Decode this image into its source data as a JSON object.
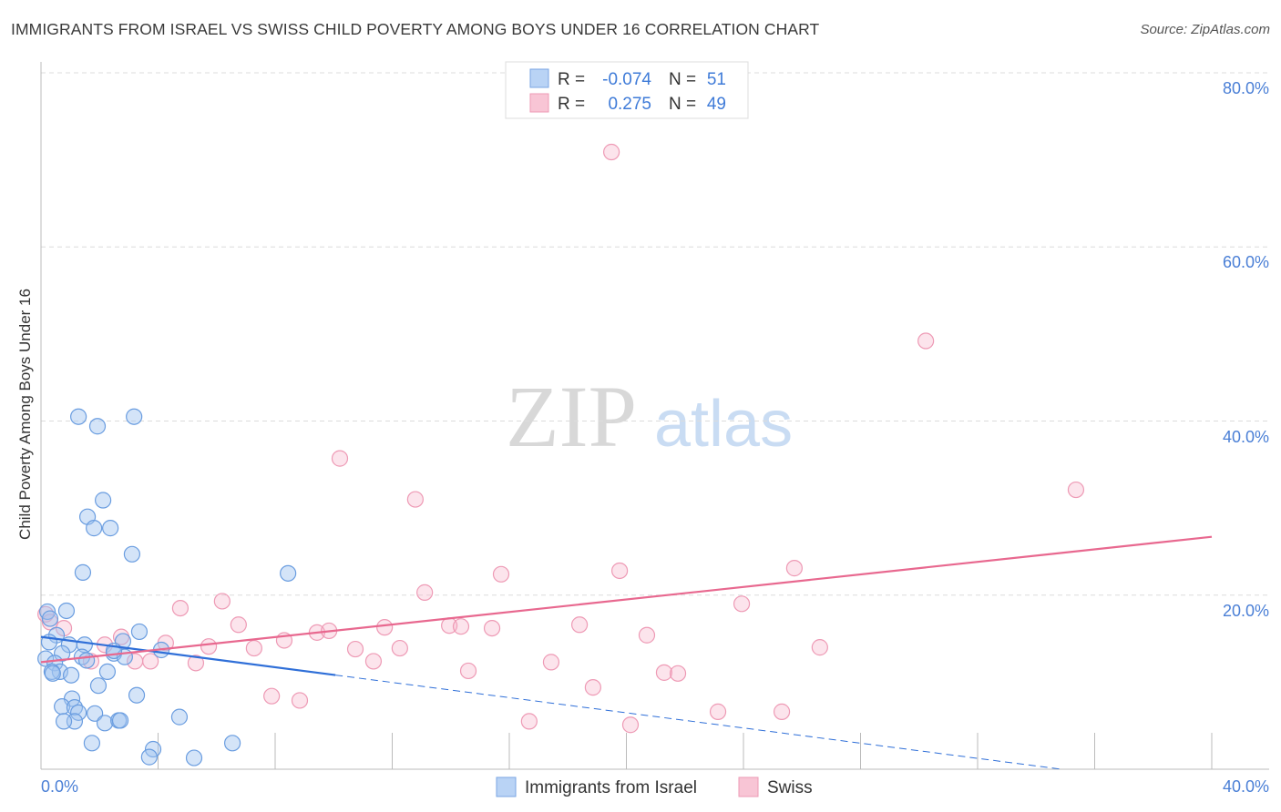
{
  "title": "IMMIGRANTS FROM ISRAEL VS SWISS CHILD POVERTY AMONG BOYS UNDER 16 CORRELATION CHART",
  "source": "Source: ZipAtlas.com",
  "watermark": {
    "zip": "ZIP",
    "atlas": "atlas"
  },
  "colors": {
    "blue": "#6a9de0",
    "blue_line": "#2f6fd8",
    "pink": "#ee9ab5",
    "pink_line": "#e8688f",
    "tick": "#4a7fd6"
  },
  "chart_data": {
    "type": "scatter",
    "title": "IMMIGRANTS FROM ISRAEL VS SWISS CHILD POVERTY AMONG BOYS UNDER 16 CORRELATION CHART",
    "xlabel": "",
    "ylabel": "Child Poverty Among Boys Under 16",
    "xlim": [
      0,
      40
    ],
    "ylim": [
      0,
      80
    ],
    "x_tick_labels": [
      "0.0%",
      "40.0%"
    ],
    "y_ticks": [
      20,
      40,
      60,
      80
    ],
    "y_tick_labels": [
      "20.0%",
      "40.0%",
      "60.0%",
      "80.0%"
    ],
    "grid": true,
    "stats_legend": [
      {
        "r_label": "R =",
        "r": "-0.074",
        "n_label": "N =",
        "n": "51"
      },
      {
        "r_label": "R =",
        "r": "0.275",
        "n_label": "N =",
        "n": "49"
      }
    ],
    "legend": [
      "Immigrants from Israel",
      "Swiss"
    ],
    "series": [
      {
        "name": "Immigrants from Israel",
        "trend": {
          "x0": 0,
          "y0": 15.2,
          "x_solid_end": 10.06,
          "slope": -0.436
        },
        "points": [
          [
            1.28,
            40.5
          ],
          [
            1.93,
            39.4
          ],
          [
            3.18,
            40.5
          ],
          [
            2.12,
            30.9
          ],
          [
            1.59,
            29.0
          ],
          [
            1.81,
            27.7
          ],
          [
            2.37,
            27.7
          ],
          [
            3.11,
            24.7
          ],
          [
            1.43,
            22.6
          ],
          [
            8.44,
            22.5
          ],
          [
            0.22,
            18.1
          ],
          [
            0.87,
            18.2
          ],
          [
            0.31,
            17.3
          ],
          [
            0.53,
            15.4
          ],
          [
            0.28,
            14.6
          ],
          [
            0.96,
            14.3
          ],
          [
            1.49,
            14.3
          ],
          [
            0.72,
            13.3
          ],
          [
            1.4,
            12.9
          ],
          [
            2.49,
            13.3
          ],
          [
            2.86,
            12.9
          ],
          [
            3.36,
            15.8
          ],
          [
            2.8,
            14.7
          ],
          [
            4.11,
            13.7
          ],
          [
            0.16,
            12.7
          ],
          [
            0.47,
            12.2
          ],
          [
            0.65,
            11.2
          ],
          [
            0.37,
            11.2
          ],
          [
            1.03,
            10.8
          ],
          [
            2.27,
            11.2
          ],
          [
            1.96,
            9.6
          ],
          [
            3.27,
            8.5
          ],
          [
            1.06,
            8.1
          ],
          [
            0.72,
            7.2
          ],
          [
            1.15,
            7.1
          ],
          [
            1.28,
            6.5
          ],
          [
            1.84,
            6.4
          ],
          [
            1.15,
            5.5
          ],
          [
            0.78,
            5.5
          ],
          [
            2.18,
            5.3
          ],
          [
            2.65,
            5.6
          ],
          [
            2.71,
            5.6
          ],
          [
            4.73,
            6.0
          ],
          [
            1.74,
            3.0
          ],
          [
            3.83,
            2.3
          ],
          [
            3.7,
            1.4
          ],
          [
            5.23,
            1.3
          ],
          [
            6.54,
            3.0
          ],
          [
            0.4,
            11.0
          ],
          [
            2.49,
            13.6
          ],
          [
            1.56,
            12.5
          ]
        ]
      },
      {
        "name": "Swiss",
        "trend": {
          "x0": 0,
          "y0": 12.3,
          "x1": 40,
          "y1": 26.7
        },
        "points": [
          [
            19.49,
            70.9
          ],
          [
            30.23,
            49.2
          ],
          [
            10.21,
            35.7
          ],
          [
            12.79,
            31.0
          ],
          [
            35.36,
            32.1
          ],
          [
            15.72,
            22.4
          ],
          [
            19.77,
            22.8
          ],
          [
            25.74,
            23.1
          ],
          [
            13.11,
            20.3
          ],
          [
            23.94,
            19.0
          ],
          [
            4.76,
            18.5
          ],
          [
            6.19,
            19.3
          ],
          [
            6.75,
            16.6
          ],
          [
            0.16,
            17.8
          ],
          [
            0.31,
            16.9
          ],
          [
            2.74,
            15.2
          ],
          [
            4.26,
            14.5
          ],
          [
            5.73,
            14.1
          ],
          [
            7.28,
            13.9
          ],
          [
            8.31,
            14.8
          ],
          [
            9.43,
            15.7
          ],
          [
            9.84,
            15.9
          ],
          [
            11.74,
            16.3
          ],
          [
            13.95,
            16.5
          ],
          [
            14.35,
            16.4
          ],
          [
            15.41,
            16.2
          ],
          [
            18.4,
            16.6
          ],
          [
            20.7,
            15.4
          ],
          [
            26.61,
            14.0
          ],
          [
            10.74,
            13.8
          ],
          [
            12.26,
            13.9
          ],
          [
            11.36,
            12.4
          ],
          [
            14.6,
            11.3
          ],
          [
            17.43,
            12.3
          ],
          [
            21.29,
            11.1
          ],
          [
            21.76,
            11.0
          ],
          [
            3.21,
            12.4
          ],
          [
            3.74,
            12.4
          ],
          [
            5.29,
            12.2
          ],
          [
            1.71,
            12.4
          ],
          [
            7.88,
            8.4
          ],
          [
            8.84,
            7.9
          ],
          [
            18.86,
            9.4
          ],
          [
            23.13,
            6.6
          ],
          [
            25.31,
            6.6
          ],
          [
            16.68,
            5.5
          ],
          [
            20.14,
            5.1
          ],
          [
            2.18,
            14.3
          ],
          [
            0.78,
            16.2
          ]
        ]
      }
    ]
  }
}
